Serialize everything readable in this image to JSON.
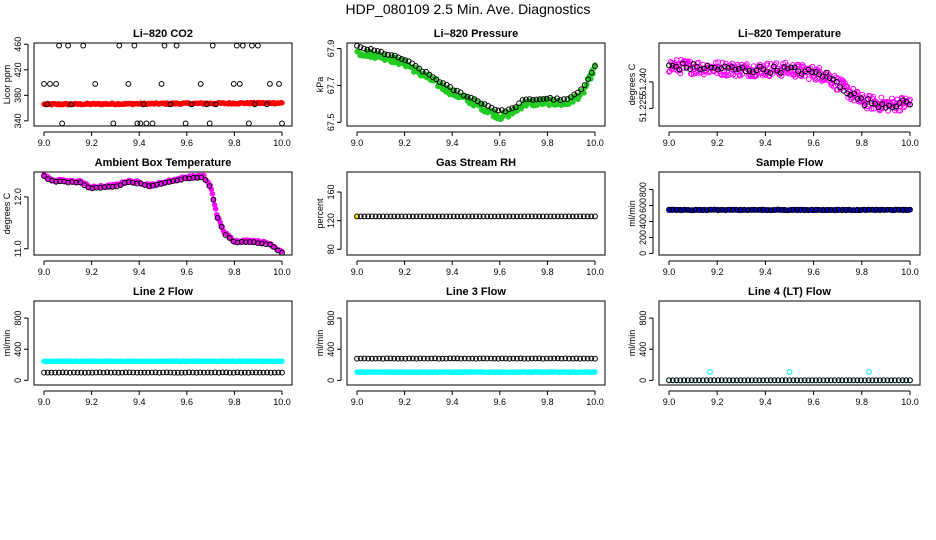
{
  "page": {
    "title": "HDP_080109  2.5 Min. Ave. Diagnostics"
  },
  "colors": {
    "red": "#ff0000",
    "green": "#22cc22",
    "magenta": "#ff00ff",
    "yellow": "#ffff00",
    "blue": "#0000cc",
    "cyan": "#00ffff",
    "black": "#000000"
  },
  "chart_data": [
    {
      "type": "scatter",
      "title": "Li–820 CO2",
      "ylabel": "Licor ppm",
      "xlim": [
        9.0,
        10.0
      ],
      "ylim": [
        332,
        462
      ],
      "xticks": [
        "9.0",
        "9.2",
        "9.4",
        "9.6",
        "9.8",
        "10.0"
      ],
      "yticks": [
        {
          "v": 340,
          "label": "340"
        },
        {
          "v": 380,
          "label": "380"
        },
        {
          "v": 420,
          "label": "420"
        },
        {
          "v": 460,
          "label": "460"
        }
      ],
      "series": [
        {
          "name": "primary",
          "color": "red",
          "filled": true,
          "kind": "line",
          "x0": 9.0,
          "x1": 10.0,
          "n": 200,
          "points": [
            [
              9.0,
              366
            ],
            [
              10.0,
              368
            ]
          ],
          "noise": 1.2
        },
        {
          "name": "secondary",
          "color": "black",
          "filled": false,
          "kind": "bands",
          "x0": 9.0,
          "x1": 10.0,
          "n": 80,
          "levels": [
            336,
            366,
            398,
            458
          ]
        }
      ]
    },
    {
      "type": "scatter",
      "title": "Li–820 Pressure",
      "ylabel": "kPa",
      "xlim": [
        9.0,
        10.0
      ],
      "ylim": [
        67.48,
        67.93
      ],
      "xticks": [
        "9.0",
        "9.2",
        "9.4",
        "9.6",
        "9.8",
        "10.0"
      ],
      "yticks": [
        {
          "v": 67.5,
          "label": "67.5"
        },
        {
          "v": 67.7,
          "label": "67.7"
        },
        {
          "v": 67.9,
          "label": "67.9"
        }
      ],
      "series": [
        {
          "name": "primary",
          "color": "green",
          "filled": true,
          "kind": "line",
          "x0": 9.0,
          "x1": 10.0,
          "n": 240,
          "points": [
            [
              9.0,
              67.88
            ],
            [
              9.1,
              67.86
            ],
            [
              9.2,
              67.82
            ],
            [
              9.3,
              67.74
            ],
            [
              9.4,
              67.66
            ],
            [
              9.5,
              67.6
            ],
            [
              9.6,
              67.53
            ],
            [
              9.65,
              67.55
            ],
            [
              9.7,
              67.6
            ],
            [
              9.8,
              67.61
            ],
            [
              9.88,
              67.6
            ],
            [
              9.95,
              67.66
            ],
            [
              10.0,
              67.8
            ]
          ],
          "noise": 0.018
        },
        {
          "name": "secondary",
          "color": "black",
          "filled": false,
          "kind": "line",
          "x0": 9.0,
          "x1": 10.0,
          "n": 70,
          "points": [
            [
              9.0,
              67.91
            ],
            [
              9.1,
              67.88
            ],
            [
              9.2,
              67.84
            ],
            [
              9.3,
              67.76
            ],
            [
              9.4,
              67.68
            ],
            [
              9.5,
              67.62
            ],
            [
              9.6,
              67.56
            ],
            [
              9.65,
              67.57
            ],
            [
              9.7,
              67.62
            ],
            [
              9.8,
              67.63
            ],
            [
              9.88,
              67.62
            ],
            [
              9.95,
              67.68
            ],
            [
              10.0,
              67.81
            ]
          ],
          "noise": 0.006
        }
      ]
    },
    {
      "type": "scatter",
      "title": "Li–820 Temperature",
      "ylabel": "degrees C",
      "xlim": [
        9.0,
        10.0
      ],
      "ylim": [
        51.215,
        51.262
      ],
      "xticks": [
        "9.0",
        "9.2",
        "9.4",
        "9.6",
        "9.8",
        "10.0"
      ],
      "yticks": [
        {
          "v": 51.225,
          "label": "51.225"
        },
        {
          "v": 51.24,
          "label": "51.240"
        }
      ],
      "series": [
        {
          "name": "primary",
          "color": "magenta",
          "filled": false,
          "kind": "line",
          "x0": 9.0,
          "x1": 10.0,
          "n": 320,
          "points": [
            [
              9.0,
              51.249
            ],
            [
              9.3,
              51.247
            ],
            [
              9.5,
              51.247
            ],
            [
              9.65,
              51.244
            ],
            [
              9.72,
              51.237
            ],
            [
              9.8,
              51.229
            ],
            [
              9.9,
              51.227
            ],
            [
              10.0,
              51.228
            ]
          ],
          "noise": 0.004
        },
        {
          "name": "secondary",
          "color": "black",
          "filled": false,
          "kind": "line",
          "x0": 9.0,
          "x1": 10.0,
          "n": 70,
          "points": [
            [
              9.0,
              51.249
            ],
            [
              9.3,
              51.247
            ],
            [
              9.5,
              51.247
            ],
            [
              9.65,
              51.244
            ],
            [
              9.72,
              51.237
            ],
            [
              9.8,
              51.229
            ],
            [
              9.9,
              51.227
            ],
            [
              10.0,
              51.228
            ]
          ],
          "noise": 0.002
        }
      ]
    },
    {
      "type": "scatter",
      "title": "Ambient Box Temperature",
      "ylabel": "degrees C",
      "xlim": [
        9.0,
        10.0
      ],
      "ylim": [
        10.88,
        12.48
      ],
      "xticks": [
        "9.0",
        "9.2",
        "9.4",
        "9.6",
        "9.8",
        "10.0"
      ],
      "yticks": [
        {
          "v": 11.0,
          "label": "11.0"
        },
        {
          "v": 12.0,
          "label": "12.0"
        }
      ],
      "series": [
        {
          "name": "primary",
          "color": "magenta",
          "filled": true,
          "kind": "line",
          "x0": 9.0,
          "x1": 10.0,
          "n": 220,
          "points": [
            [
              9.0,
              12.42
            ],
            [
              9.03,
              12.33
            ],
            [
              9.1,
              12.3
            ],
            [
              9.15,
              12.3
            ],
            [
              9.2,
              12.18
            ],
            [
              9.3,
              12.22
            ],
            [
              9.35,
              12.3
            ],
            [
              9.4,
              12.28
            ],
            [
              9.45,
              12.22
            ],
            [
              9.55,
              12.33
            ],
            [
              9.6,
              12.38
            ],
            [
              9.67,
              12.4
            ],
            [
              9.7,
              12.2
            ],
            [
              9.73,
              11.6
            ],
            [
              9.76,
              11.3
            ],
            [
              9.8,
              11.15
            ],
            [
              9.88,
              11.15
            ],
            [
              9.95,
              11.1
            ],
            [
              9.98,
              11.0
            ],
            [
              10.0,
              10.95
            ]
          ],
          "noise": 0.025
        },
        {
          "name": "secondary",
          "color": "black",
          "filled": false,
          "kind": "line",
          "x0": 9.0,
          "x1": 10.0,
          "n": 60,
          "points": [
            [
              9.0,
              12.4
            ],
            [
              9.03,
              12.31
            ],
            [
              9.1,
              12.28
            ],
            [
              9.15,
              12.28
            ],
            [
              9.2,
              12.16
            ],
            [
              9.3,
              12.2
            ],
            [
              9.35,
              12.28
            ],
            [
              9.4,
              12.26
            ],
            [
              9.45,
              12.2
            ],
            [
              9.55,
              12.31
            ],
            [
              9.6,
              12.36
            ],
            [
              9.67,
              12.38
            ],
            [
              9.7,
              12.18
            ],
            [
              9.73,
              11.58
            ],
            [
              9.76,
              11.28
            ],
            [
              9.8,
              11.13
            ],
            [
              9.88,
              11.13
            ],
            [
              9.95,
              11.08
            ],
            [
              9.98,
              10.98
            ],
            [
              10.0,
              10.93
            ]
          ],
          "noise": 0.01
        }
      ]
    },
    {
      "type": "scatter",
      "title": "Gas Stream RH",
      "ylabel": "percent",
      "xlim": [
        9.0,
        10.0
      ],
      "ylim": [
        72,
        188
      ],
      "xticks": [
        "9.0",
        "9.2",
        "9.4",
        "9.6",
        "9.8",
        "10.0"
      ],
      "yticks": [
        {
          "v": 80,
          "label": "80"
        },
        {
          "v": 120,
          "label": "120"
        },
        {
          "v": 160,
          "label": "160"
        }
      ],
      "series": [
        {
          "name": "primary",
          "color": "yellow",
          "filled": true,
          "kind": "line",
          "x0": 9.0,
          "x1": 10.0,
          "n": 1,
          "points": [
            [
              9.0,
              126
            ],
            [
              10.0,
              126
            ]
          ],
          "noise": 0
        },
        {
          "name": "secondary",
          "color": "black",
          "filled": false,
          "kind": "line",
          "x0": 9.0,
          "x1": 10.0,
          "n": 65,
          "points": [
            [
              9.0,
              126
            ],
            [
              10.0,
              126
            ]
          ],
          "noise": 0
        }
      ]
    },
    {
      "type": "scatter",
      "title": "Sample Flow",
      "ylabel": "ml/min",
      "xlim": [
        9.0,
        10.0
      ],
      "ylim": [
        -20,
        1020
      ],
      "xticks": [
        "9.0",
        "9.2",
        "9.4",
        "9.6",
        "9.8",
        "10.0"
      ],
      "yticks": [
        {
          "v": 0,
          "label": "0"
        },
        {
          "v": 200,
          "label": "200"
        },
        {
          "v": 400,
          "label": "400"
        },
        {
          "v": 600,
          "label": "600"
        },
        {
          "v": 800,
          "label": "800"
        }
      ],
      "series": [
        {
          "name": "primary",
          "color": "blue",
          "filled": true,
          "kind": "line",
          "x0": 9.0,
          "x1": 10.0,
          "n": 220,
          "points": [
            [
              9.0,
              545
            ],
            [
              10.0,
              545
            ]
          ],
          "noise": 6
        },
        {
          "name": "secondary",
          "color": "black",
          "filled": false,
          "kind": "line",
          "x0": 9.0,
          "x1": 10.0,
          "n": 65,
          "points": [
            [
              9.0,
              545
            ],
            [
              10.0,
              545
            ]
          ],
          "noise": 4
        }
      ]
    },
    {
      "type": "scatter",
      "title": "Line 2 Flow",
      "ylabel": "ml/min",
      "xlim": [
        9.0,
        10.0
      ],
      "ylim": [
        -60,
        1020
      ],
      "xticks": [
        "9.0",
        "9.2",
        "9.4",
        "9.6",
        "9.8",
        "10.0"
      ],
      "yticks": [
        {
          "v": 0,
          "label": "0"
        },
        {
          "v": 400,
          "label": "400"
        },
        {
          "v": 800,
          "label": "800"
        }
      ],
      "series": [
        {
          "name": "primary",
          "color": "cyan",
          "filled": true,
          "kind": "line",
          "x0": 9.0,
          "x1": 10.0,
          "n": 200,
          "points": [
            [
              9.0,
              245
            ],
            [
              10.0,
              245
            ]
          ],
          "noise": 3
        },
        {
          "name": "secondary",
          "color": "black",
          "filled": false,
          "kind": "line",
          "x0": 9.0,
          "x1": 10.0,
          "n": 65,
          "points": [
            [
              9.0,
              100
            ],
            [
              10.0,
              100
            ]
          ],
          "noise": 2
        }
      ]
    },
    {
      "type": "scatter",
      "title": "Line 3 Flow",
      "ylabel": "ml/min",
      "xlim": [
        9.0,
        10.0
      ],
      "ylim": [
        -60,
        1020
      ],
      "xticks": [
        "9.0",
        "9.2",
        "9.4",
        "9.6",
        "9.8",
        "10.0"
      ],
      "yticks": [
        {
          "v": 0,
          "label": "0"
        },
        {
          "v": 400,
          "label": "400"
        },
        {
          "v": 800,
          "label": "800"
        }
      ],
      "series": [
        {
          "name": "primary",
          "color": "cyan",
          "filled": true,
          "kind": "line",
          "x0": 9.0,
          "x1": 10.0,
          "n": 200,
          "points": [
            [
              9.0,
              105
            ],
            [
              10.0,
              105
            ]
          ],
          "noise": 3
        },
        {
          "name": "secondary",
          "color": "black",
          "filled": false,
          "kind": "line",
          "x0": 9.0,
          "x1": 10.0,
          "n": 65,
          "points": [
            [
              9.0,
              280
            ],
            [
              10.0,
              280
            ]
          ],
          "noise": 2
        }
      ]
    },
    {
      "type": "scatter",
      "title": "Line 4 (LT) Flow",
      "ylabel": "ml/min",
      "xlim": [
        9.0,
        10.0
      ],
      "ylim": [
        -60,
        1020
      ],
      "xticks": [
        "9.0",
        "9.2",
        "9.4",
        "9.6",
        "9.8",
        "10.0"
      ],
      "yticks": [
        {
          "v": 0,
          "label": "0"
        },
        {
          "v": 400,
          "label": "400"
        },
        {
          "v": 800,
          "label": "800"
        }
      ],
      "series": [
        {
          "name": "primary",
          "color": "cyan",
          "filled": false,
          "kind": "line",
          "x0": 9.0,
          "x1": 10.0,
          "n": 65,
          "points": [
            [
              9.0,
              0
            ],
            [
              10.0,
              0
            ]
          ],
          "noise": 0,
          "extra": [
            [
              9.17,
              110
            ],
            [
              9.5,
              110
            ],
            [
              9.83,
              110
            ]
          ]
        },
        {
          "name": "secondary",
          "color": "black",
          "filled": false,
          "kind": "line",
          "x0": 9.0,
          "x1": 10.0,
          "n": 65,
          "points": [
            [
              9.0,
              0
            ],
            [
              10.0,
              0
            ]
          ],
          "noise": 0
        }
      ]
    }
  ]
}
